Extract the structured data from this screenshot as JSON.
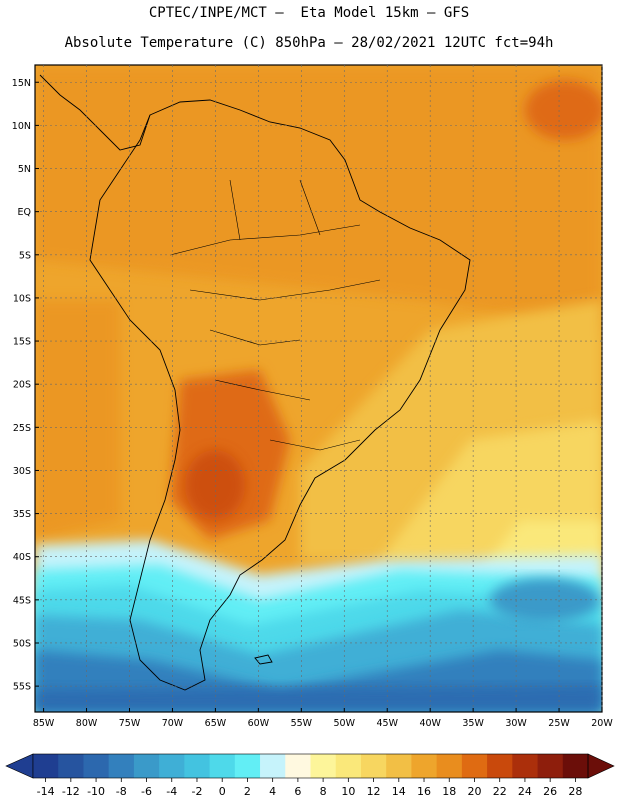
{
  "header": {
    "line1": "CPTEC/INPE/MCT –  Eta Model 15km – GFS",
    "line2": "Absolute Temperature (C) 850hPa – 28/02/2021 12UTC fct=94h"
  },
  "map": {
    "lat_labels": [
      "15N",
      "10N",
      "5N",
      "EQ",
      "5S",
      "10S",
      "15S",
      "20S",
      "25S",
      "30S",
      "35S",
      "40S",
      "45S",
      "50S",
      "55S"
    ],
    "lon_labels": [
      "85W",
      "80W",
      "75W",
      "70W",
      "65W",
      "60W",
      "55W",
      "50W",
      "45W",
      "40W",
      "35W",
      "30W",
      "25W",
      "20W"
    ],
    "lat_range": [
      17,
      -58
    ],
    "lon_range": [
      -86,
      -20
    ],
    "grid": true
  },
  "colorbar": {
    "labels": [
      "-14",
      "-12",
      "-10",
      "-8",
      "-6",
      "-4",
      "-2",
      "0",
      "2",
      "4",
      "6",
      "8",
      "10",
      "12",
      "14",
      "16",
      "18",
      "20",
      "22",
      "24",
      "26",
      "28"
    ],
    "colors": [
      "#1f3e91",
      "#26549f",
      "#2c68ae",
      "#3380bd",
      "#3a9ac9",
      "#3fafd6",
      "#43c3e0",
      "#4ed9ea",
      "#62eef5",
      "#c6f3fb",
      "#fff9e0",
      "#fdf59a",
      "#fae87a",
      "#f7d660",
      "#f2bf45",
      "#eea52c",
      "#e98d1e",
      "#df6b12",
      "#c9490c",
      "#ab2f0b",
      "#8e1e0c",
      "#6b0e09"
    ]
  }
}
